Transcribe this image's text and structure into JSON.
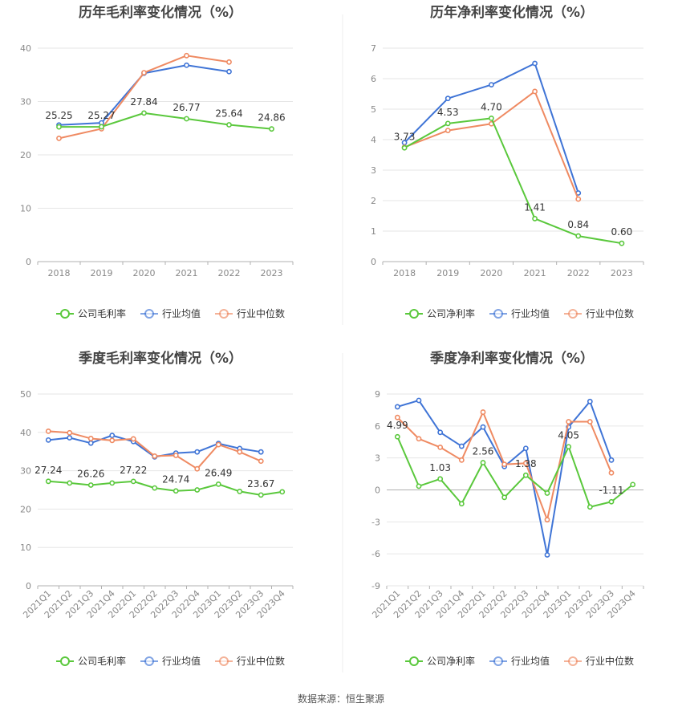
{
  "source": "数据来源：恒生聚源",
  "colors": {
    "company": "#5ac83c",
    "industry_avg": "#3f74d6",
    "industry_median": "#ef8a62",
    "grid": "#e6e6e6",
    "axis_text": "#888888",
    "label_text": "#333333",
    "title_text": "#444444"
  },
  "chart_data": [
    {
      "type": "line",
      "title": "历年毛利率变化情况（%）",
      "categories": [
        "2018",
        "2019",
        "2020",
        "2021",
        "2022",
        "2023"
      ],
      "yticks": [
        "0",
        "10",
        "20",
        "30",
        "40"
      ],
      "ylim": [
        0,
        40
      ],
      "series": [
        {
          "name": "公司毛利率",
          "values": [
            25.25,
            25.27,
            27.84,
            26.77,
            25.64,
            24.86
          ],
          "labels": [
            "25.25",
            "25.27",
            "27.84",
            "26.77",
            "25.64",
            "24.86"
          ]
        },
        {
          "name": "行业均值",
          "values": [
            25.6,
            26.0,
            35.3,
            36.8,
            35.6,
            null
          ]
        },
        {
          "name": "行业中位数",
          "values": [
            23.1,
            24.9,
            35.4,
            38.6,
            37.4,
            null
          ]
        }
      ]
    },
    {
      "type": "line",
      "title": "历年净利率变化情况（%）",
      "categories": [
        "2018",
        "2019",
        "2020",
        "2021",
        "2022",
        "2023"
      ],
      "yticks": [
        "0",
        "1",
        "2",
        "3",
        "4",
        "5",
        "6",
        "7"
      ],
      "ylim": [
        0,
        7
      ],
      "series": [
        {
          "name": "公司净利率",
          "values": [
            3.73,
            4.53,
            4.7,
            1.41,
            0.84,
            0.6
          ],
          "labels": [
            "3.73",
            "4.53",
            "4.70",
            "1.41",
            "0.84",
            "0.60"
          ]
        },
        {
          "name": "行业均值",
          "values": [
            3.9,
            5.35,
            5.8,
            6.5,
            2.25,
            null
          ]
        },
        {
          "name": "行业中位数",
          "values": [
            3.75,
            4.3,
            4.52,
            5.58,
            2.05,
            null
          ]
        }
      ]
    },
    {
      "type": "line",
      "title": "季度毛利率变化情况（%）",
      "categories": [
        "2021Q1",
        "2021Q2",
        "2021Q3",
        "2021Q4",
        "2022Q1",
        "2022Q2",
        "2022Q3",
        "2022Q4",
        "2023Q1",
        "2023Q2",
        "2023Q3",
        "2023Q4"
      ],
      "yticks": [
        "0",
        "10",
        "20",
        "30",
        "40",
        "50"
      ],
      "ylim": [
        0,
        50
      ],
      "series": [
        {
          "name": "公司毛利率",
          "values": [
            27.24,
            26.8,
            26.26,
            26.8,
            27.22,
            25.5,
            24.74,
            25.0,
            26.49,
            24.6,
            23.67,
            24.5
          ],
          "labels": [
            "27.24",
            "",
            "26.26",
            "",
            "27.22",
            "",
            "24.74",
            "",
            "26.49",
            "",
            "23.67",
            ""
          ]
        },
        {
          "name": "行业均值",
          "values": [
            38.0,
            38.6,
            37.2,
            39.2,
            37.6,
            33.6,
            34.6,
            34.9,
            37.1,
            35.8,
            34.9,
            null
          ]
        },
        {
          "name": "行业中位数",
          "values": [
            40.3,
            39.9,
            38.4,
            37.9,
            38.3,
            33.8,
            34.0,
            30.5,
            36.8,
            34.9,
            32.5,
            null
          ]
        }
      ]
    },
    {
      "type": "line",
      "title": "季度净利率变化情况（%）",
      "categories": [
        "2021Q1",
        "2021Q2",
        "2021Q3",
        "2021Q4",
        "2022Q1",
        "2022Q2",
        "2022Q3",
        "2022Q4",
        "2023Q1",
        "2023Q2",
        "2023Q3",
        "2023Q4"
      ],
      "yticks": [
        "-9",
        "-6",
        "-3",
        "0",
        "3",
        "6",
        "9"
      ],
      "ylim": [
        -9,
        9
      ],
      "series": [
        {
          "name": "公司净利率",
          "values": [
            4.99,
            0.35,
            1.03,
            -1.3,
            2.56,
            -0.7,
            1.38,
            -0.3,
            4.05,
            -1.6,
            -1.11,
            0.5
          ],
          "labels": [
            "4.99",
            "",
            "1.03",
            "",
            "2.56",
            "",
            "1.38",
            "",
            "4.05",
            "",
            "-1.11",
            ""
          ]
        },
        {
          "name": "行业均值",
          "values": [
            7.8,
            8.4,
            5.4,
            4.1,
            5.9,
            2.2,
            3.9,
            -6.1,
            5.9,
            8.3,
            2.8,
            null
          ]
        },
        {
          "name": "行业中位数",
          "values": [
            6.8,
            4.8,
            4.0,
            2.8,
            7.3,
            2.4,
            2.5,
            -2.8,
            6.4,
            6.4,
            1.6,
            null
          ]
        }
      ]
    }
  ]
}
